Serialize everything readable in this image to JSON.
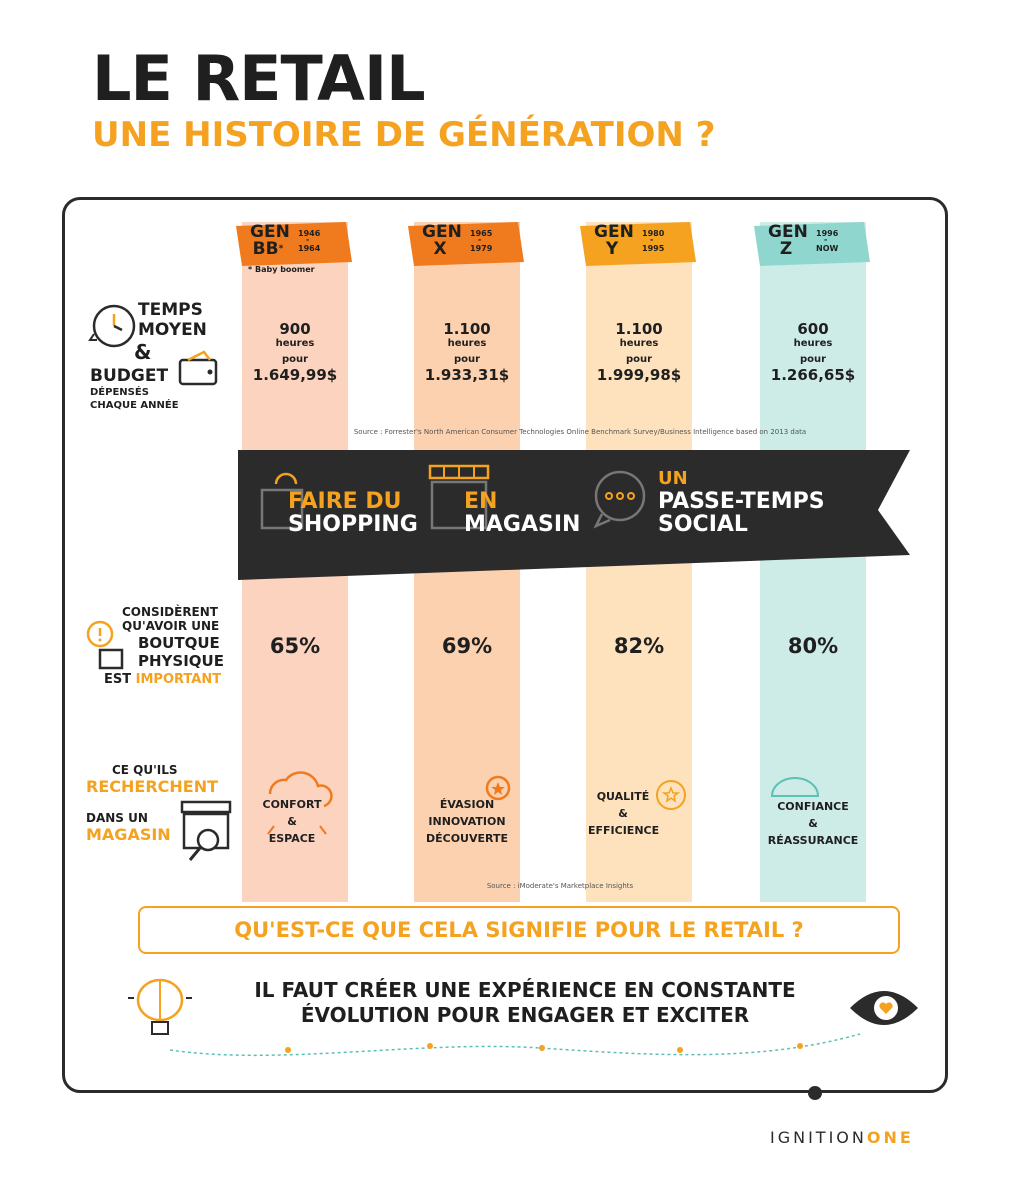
{
  "header": {
    "title": "LE RETAIL",
    "subtitle": "UNE HISTOIRE DE GÉNÉRATION ?"
  },
  "colors": {
    "orange": "#f4a21f",
    "dark": "#2b2b2b",
    "gen_bb_col": "#fbd3bf",
    "gen_x_col": "#fcd1b0",
    "gen_y_col": "#fde2bd",
    "gen_z_col": "#cdebe7"
  },
  "generations": [
    {
      "label_line1": "GEN",
      "label_line2": "BB",
      "mark": "*",
      "year_start": "1946",
      "year_end": "1964",
      "hours": "900",
      "hours_unit": "heures",
      "for_label": "pour",
      "budget": "1.649,99$",
      "store_pct": "65%",
      "looking_for": [
        "CONFORT",
        "&",
        "ESPACE"
      ]
    },
    {
      "label_line1": "GEN",
      "label_line2": "X",
      "mark": "",
      "year_start": "1965",
      "year_end": "1979",
      "hours": "1.100",
      "hours_unit": "heures",
      "for_label": "pour",
      "budget": "1.933,31$",
      "store_pct": "69%",
      "looking_for": [
        "ÉVASION",
        "INNOVATION",
        "DÉCOUVERTE"
      ]
    },
    {
      "label_line1": "GEN",
      "label_line2": "Y",
      "mark": "",
      "year_start": "1980",
      "year_end": "1995",
      "hours": "1.100",
      "hours_unit": "heures",
      "for_label": "pour",
      "budget": "1.999,98$",
      "store_pct": "82%",
      "looking_for": [
        "QUALITÉ",
        "&",
        "EFFICIENCE"
      ]
    },
    {
      "label_line1": "GEN",
      "label_line2": "Z",
      "mark": "",
      "year_start": "1996",
      "year_end": "NOW",
      "hours": "600",
      "hours_unit": "heures",
      "for_label": "pour",
      "budget": "1.266,65$",
      "store_pct": "80%",
      "looking_for": [
        "CONFIANCE",
        "&",
        "RÉASSURANCE"
      ]
    }
  ],
  "bb_note": "* Baby boomer",
  "row_time": {
    "line1": "TEMPS",
    "line2": "MOYEN",
    "line3": "&",
    "line4": "BUDGET",
    "line5": "DÉPENSÉS",
    "line6": "CHAQUE ANNÉE"
  },
  "source_1": "Source : Forrester's North American Consumer Technologies Online Benchmark Survey/Business Intelligence based on 2013 data",
  "banner": {
    "a1": "FAIRE DU",
    "a2": "SHOPPING",
    "b1": "EN",
    "b2": "MAGASIN",
    "c1": "UN",
    "c2": "PASSE-TEMPS",
    "c3": "SOCIAL"
  },
  "row_store": {
    "line1": "CONSIDÈRENT",
    "line2": "QU'AVOIR UNE",
    "line3": "BOUTQUE",
    "line4": "PHYSIQUE",
    "line5a": "EST",
    "line5b": "IMPORTANT"
  },
  "row_look": {
    "line1": "CE QU'ILS",
    "line2": "RECHERCHENT",
    "line3": "DANS UN",
    "line4": "MAGASIN"
  },
  "source_2": "Source : iModerate's Marketplace Insights",
  "question": "QU'EST-CE QUE CELA SIGNIFIE POUR LE RETAIL ?",
  "conclusion": {
    "line1": "IL FAUT CRÉER UNE EXPÉRIENCE EN CONSTANTE",
    "line2": "ÉVOLUTION POUR ENGAGER ET EXCITER"
  },
  "brand": {
    "part1": "IGNITION",
    "part2": "ONE"
  }
}
